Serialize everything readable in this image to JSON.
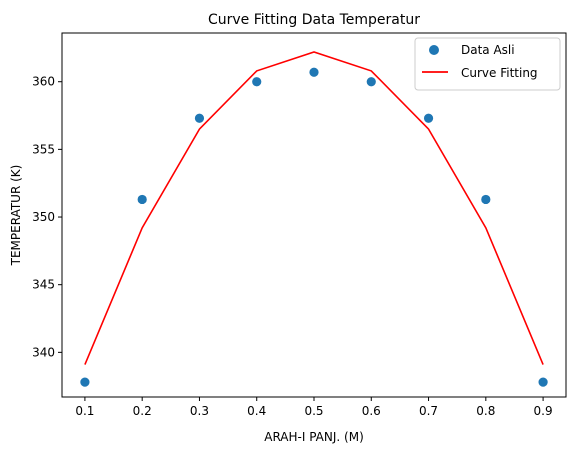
{
  "chart_data": {
    "type": "scatter",
    "title": "Curve Fitting Data Temperatur",
    "xlabel": "ARAH-I PANJ. (M)",
    "ylabel": "TEMPERATUR (K)",
    "xlim": [
      0.06,
      0.94
    ],
    "ylim": [
      336.7,
      363.6
    ],
    "x_ticks": [
      0.1,
      0.2,
      0.3,
      0.4,
      0.5,
      0.6,
      0.7,
      0.8,
      0.9
    ],
    "x_tick_labels": [
      "0.1",
      "0.2",
      "0.3",
      "0.4",
      "0.5",
      "0.6",
      "0.7",
      "0.8",
      "0.9"
    ],
    "y_ticks": [
      340,
      345,
      350,
      355,
      360
    ],
    "y_tick_labels": [
      "340",
      "345",
      "350",
      "355",
      "360"
    ],
    "grid": false,
    "legend_position": "top-right",
    "series": [
      {
        "name": "Data Asli",
        "kind": "scatter",
        "color": "#1f77b4",
        "x": [
          0.1,
          0.2,
          0.3,
          0.4,
          0.5,
          0.6,
          0.7,
          0.8,
          0.9
        ],
        "y": [
          337.8,
          351.3,
          357.3,
          360.0,
          360.7,
          360.0,
          357.3,
          351.3,
          337.8
        ]
      },
      {
        "name": "Curve Fitting",
        "kind": "line",
        "color": "#ff0000",
        "x": [
          0.1,
          0.2,
          0.3,
          0.4,
          0.5,
          0.6,
          0.7,
          0.8,
          0.9
        ],
        "y": [
          339.1,
          349.2,
          356.5,
          360.8,
          362.2,
          360.8,
          356.5,
          349.2,
          339.1
        ]
      }
    ]
  }
}
